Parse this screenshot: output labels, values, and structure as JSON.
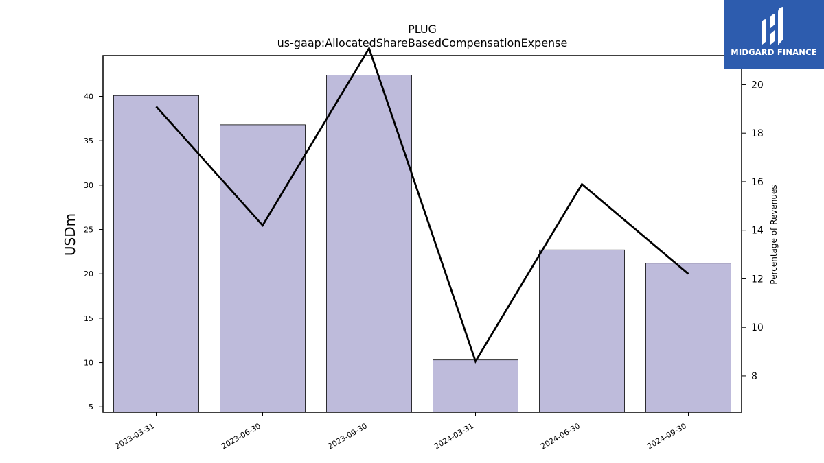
{
  "chart_data": {
    "type": "bar",
    "title": "PLUG",
    "subtitle": "us-gaap:AllocatedShareBasedCompensationExpense",
    "categories": [
      "2023-03-31",
      "2023-06-30",
      "2023-09-30",
      "2024-03-31",
      "2024-06-30",
      "2024-09-30"
    ],
    "series": [
      {
        "values": [
          40.1,
          36.8,
          42.4,
          10.3,
          22.7,
          21.2
        ],
        "color": "#bebbdb",
        "axis": "left",
        "kind": "bar"
      },
      {
        "values": [
          19.1,
          14.2,
          21.5,
          8.6,
          15.9,
          12.2
        ],
        "color": "#000000",
        "axis": "right",
        "kind": "line"
      }
    ],
    "ylabel": "USDm",
    "ylabel_right": "Percentage of Revenues",
    "ylim": [
      4.4,
      44.6
    ],
    "ylim_right": [
      6.5,
      21.2
    ],
    "yticks": [
      5,
      10,
      15,
      20,
      25,
      30,
      35,
      40
    ],
    "yticks_right": [
      8,
      10,
      12,
      14,
      16,
      18,
      20
    ],
    "grid": false
  },
  "logo": {
    "text": "MIDGARD FINANCE",
    "color": "#2d5cae"
  }
}
